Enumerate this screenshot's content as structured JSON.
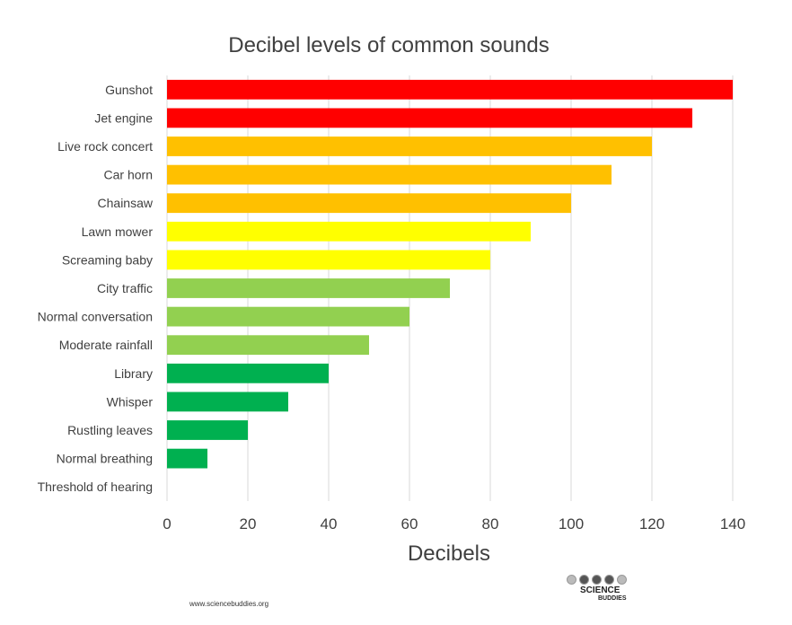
{
  "chart_data": {
    "type": "bar",
    "orientation": "horizontal",
    "title": "Decibel levels of common sounds",
    "xlabel": "Decibels",
    "ylabel": "",
    "xlim": [
      0,
      140
    ],
    "xticks": [
      0,
      20,
      40,
      60,
      80,
      100,
      120,
      140
    ],
    "grid": "vertical",
    "categories": [
      "Gunshot",
      "Jet engine",
      "Live rock concert",
      "Car horn",
      "Chainsaw",
      "Lawn mower",
      "Screaming baby",
      "City traffic",
      "Normal conversation",
      "Moderate rainfall",
      "Library",
      "Whisper",
      "Rustling leaves",
      "Normal breathing",
      "Threshold of hearing"
    ],
    "values": [
      140,
      130,
      120,
      110,
      100,
      90,
      80,
      70,
      60,
      50,
      40,
      30,
      20,
      10,
      0
    ],
    "colors": [
      "#ff0000",
      "#ff0000",
      "#ffc000",
      "#ffc000",
      "#ffc000",
      "#ffff00",
      "#ffff00",
      "#92d050",
      "#92d050",
      "#92d050",
      "#00b050",
      "#00b050",
      "#00b050",
      "#00b050",
      "#00b050"
    ]
  },
  "footer": {
    "url": "www.sciencebuddies.org",
    "logo_line1": "SCIENCE",
    "logo_line2": "BUDDIES"
  }
}
